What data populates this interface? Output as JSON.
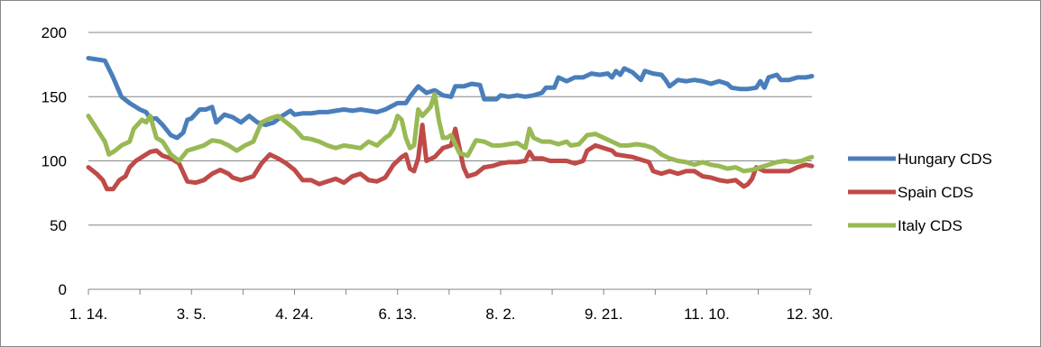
{
  "chart_data": {
    "type": "line",
    "title": "",
    "xlabel": "",
    "ylabel": "",
    "ylim": [
      0,
      200
    ],
    "yticks": [
      0,
      50,
      100,
      150,
      200
    ],
    "xtick_labels": [
      "1. 14.",
      "3. 5.",
      "4. 24.",
      "6. 13.",
      "8. 2.",
      "9. 21.",
      "11. 10.",
      "12. 30."
    ],
    "grid": "horizontal",
    "legend_position": "right",
    "x_count": 351,
    "series": [
      {
        "name": "Hungary CDS",
        "color": "#4a7ebb",
        "points": [
          [
            0,
            180
          ],
          [
            8,
            178
          ],
          [
            12,
            165
          ],
          [
            16,
            150
          ],
          [
            20,
            145
          ],
          [
            25,
            140
          ],
          [
            28,
            138
          ],
          [
            30,
            133
          ],
          [
            33,
            133
          ],
          [
            36,
            128
          ],
          [
            40,
            120
          ],
          [
            43,
            118
          ],
          [
            46,
            122
          ],
          [
            48,
            132
          ],
          [
            50,
            133
          ],
          [
            54,
            140
          ],
          [
            57,
            140
          ],
          [
            60,
            142
          ],
          [
            62,
            130
          ],
          [
            64,
            133
          ],
          [
            66,
            136
          ],
          [
            70,
            134
          ],
          [
            74,
            130
          ],
          [
            78,
            135
          ],
          [
            82,
            130
          ],
          [
            86,
            128
          ],
          [
            90,
            130
          ],
          [
            94,
            135
          ],
          [
            98,
            139
          ],
          [
            100,
            136
          ],
          [
            104,
            137
          ],
          [
            108,
            137
          ],
          [
            112,
            138
          ],
          [
            116,
            138
          ],
          [
            120,
            139
          ],
          [
            124,
            140
          ],
          [
            128,
            139
          ],
          [
            132,
            140
          ],
          [
            136,
            139
          ],
          [
            140,
            138
          ],
          [
            144,
            140
          ],
          [
            150,
            145
          ],
          [
            154,
            145
          ],
          [
            156,
            150
          ],
          [
            160,
            158
          ],
          [
            164,
            153
          ],
          [
            168,
            155
          ],
          [
            172,
            151
          ],
          [
            176,
            150
          ],
          [
            178,
            158
          ],
          [
            182,
            158
          ],
          [
            186,
            160
          ],
          [
            190,
            159
          ],
          [
            192,
            148
          ],
          [
            196,
            148
          ],
          [
            198,
            148
          ],
          [
            200,
            151
          ],
          [
            204,
            150
          ],
          [
            208,
            151
          ],
          [
            212,
            150
          ],
          [
            216,
            151
          ],
          [
            220,
            153
          ],
          [
            222,
            157
          ],
          [
            226,
            157
          ],
          [
            228,
            165
          ],
          [
            232,
            162
          ],
          [
            236,
            165
          ],
          [
            240,
            165
          ],
          [
            244,
            168
          ],
          [
            248,
            167
          ],
          [
            252,
            168
          ],
          [
            254,
            165
          ],
          [
            256,
            170
          ],
          [
            258,
            167
          ],
          [
            260,
            172
          ],
          [
            264,
            169
          ],
          [
            268,
            163
          ],
          [
            270,
            170
          ],
          [
            274,
            168
          ],
          [
            278,
            167
          ],
          [
            280,
            163
          ],
          [
            282,
            158
          ],
          [
            286,
            163
          ],
          [
            290,
            162
          ],
          [
            294,
            163
          ],
          [
            298,
            162
          ],
          [
            302,
            160
          ],
          [
            306,
            162
          ],
          [
            310,
            160
          ],
          [
            312,
            157
          ],
          [
            316,
            156
          ],
          [
            320,
            156
          ],
          [
            324,
            157
          ],
          [
            326,
            162
          ],
          [
            328,
            157
          ],
          [
            330,
            165
          ],
          [
            334,
            167
          ],
          [
            336,
            163
          ],
          [
            340,
            163
          ],
          [
            344,
            165
          ],
          [
            348,
            165
          ],
          [
            351,
            166
          ]
        ]
      },
      {
        "name": "Spain CDS",
        "color": "#be4b48",
        "points": [
          [
            0,
            95
          ],
          [
            4,
            90
          ],
          [
            7,
            85
          ],
          [
            9,
            78
          ],
          [
            12,
            78
          ],
          [
            15,
            85
          ],
          [
            18,
            88
          ],
          [
            20,
            95
          ],
          [
            23,
            100
          ],
          [
            26,
            103
          ],
          [
            30,
            107
          ],
          [
            33,
            108
          ],
          [
            36,
            104
          ],
          [
            40,
            102
          ],
          [
            44,
            98
          ],
          [
            48,
            84
          ],
          [
            52,
            83
          ],
          [
            56,
            85
          ],
          [
            60,
            90
          ],
          [
            64,
            93
          ],
          [
            68,
            90
          ],
          [
            70,
            87
          ],
          [
            74,
            85
          ],
          [
            80,
            88
          ],
          [
            84,
            98
          ],
          [
            88,
            105
          ],
          [
            92,
            102
          ],
          [
            96,
            98
          ],
          [
            100,
            93
          ],
          [
            104,
            85
          ],
          [
            108,
            85
          ],
          [
            112,
            82
          ],
          [
            116,
            84
          ],
          [
            120,
            86
          ],
          [
            124,
            83
          ],
          [
            128,
            88
          ],
          [
            132,
            90
          ],
          [
            136,
            85
          ],
          [
            140,
            84
          ],
          [
            144,
            87
          ],
          [
            148,
            97
          ],
          [
            152,
            103
          ],
          [
            154,
            105
          ],
          [
            156,
            94
          ],
          [
            158,
            92
          ],
          [
            160,
            102
          ],
          [
            162,
            128
          ],
          [
            164,
            100
          ],
          [
            168,
            103
          ],
          [
            172,
            110
          ],
          [
            176,
            112
          ],
          [
            178,
            125
          ],
          [
            182,
            95
          ],
          [
            184,
            88
          ],
          [
            188,
            90
          ],
          [
            192,
            95
          ],
          [
            196,
            96
          ],
          [
            200,
            98
          ],
          [
            204,
            99
          ],
          [
            208,
            99
          ],
          [
            212,
            100
          ],
          [
            214,
            107
          ],
          [
            216,
            102
          ],
          [
            220,
            102
          ],
          [
            224,
            100
          ],
          [
            228,
            100
          ],
          [
            232,
            100
          ],
          [
            236,
            98
          ],
          [
            240,
            100
          ],
          [
            242,
            108
          ],
          [
            246,
            112
          ],
          [
            250,
            110
          ],
          [
            254,
            108
          ],
          [
            256,
            105
          ],
          [
            260,
            104
          ],
          [
            264,
            103
          ],
          [
            268,
            101
          ],
          [
            272,
            99
          ],
          [
            274,
            92
          ],
          [
            278,
            90
          ],
          [
            282,
            92
          ],
          [
            286,
            90
          ],
          [
            290,
            92
          ],
          [
            294,
            92
          ],
          [
            298,
            88
          ],
          [
            302,
            87
          ],
          [
            306,
            85
          ],
          [
            310,
            84
          ],
          [
            314,
            85
          ],
          [
            318,
            80
          ],
          [
            320,
            82
          ],
          [
            322,
            86
          ],
          [
            324,
            95
          ],
          [
            328,
            92
          ],
          [
            332,
            92
          ],
          [
            336,
            92
          ],
          [
            340,
            92
          ],
          [
            344,
            95
          ],
          [
            348,
            97
          ],
          [
            351,
            96
          ]
        ]
      },
      {
        "name": "Italy CDS",
        "color": "#98b954",
        "points": [
          [
            0,
            135
          ],
          [
            4,
            125
          ],
          [
            8,
            115
          ],
          [
            10,
            105
          ],
          [
            13,
            108
          ],
          [
            16,
            112
          ],
          [
            20,
            115
          ],
          [
            22,
            125
          ],
          [
            26,
            132
          ],
          [
            28,
            130
          ],
          [
            30,
            135
          ],
          [
            33,
            118
          ],
          [
            36,
            115
          ],
          [
            40,
            105
          ],
          [
            44,
            100
          ],
          [
            48,
            108
          ],
          [
            52,
            110
          ],
          [
            56,
            112
          ],
          [
            60,
            116
          ],
          [
            64,
            115
          ],
          [
            68,
            112
          ],
          [
            72,
            108
          ],
          [
            76,
            112
          ],
          [
            80,
            115
          ],
          [
            84,
            130
          ],
          [
            88,
            133
          ],
          [
            92,
            135
          ],
          [
            96,
            130
          ],
          [
            100,
            125
          ],
          [
            104,
            118
          ],
          [
            108,
            117
          ],
          [
            112,
            115
          ],
          [
            116,
            112
          ],
          [
            120,
            110
          ],
          [
            124,
            112
          ],
          [
            128,
            111
          ],
          [
            132,
            110
          ],
          [
            136,
            115
          ],
          [
            140,
            112
          ],
          [
            144,
            118
          ],
          [
            146,
            120
          ],
          [
            148,
            125
          ],
          [
            150,
            135
          ],
          [
            152,
            132
          ],
          [
            154,
            118
          ],
          [
            156,
            110
          ],
          [
            158,
            112
          ],
          [
            160,
            140
          ],
          [
            162,
            135
          ],
          [
            166,
            142
          ],
          [
            168,
            152
          ],
          [
            170,
            132
          ],
          [
            172,
            118
          ],
          [
            174,
            118
          ],
          [
            176,
            120
          ],
          [
            180,
            106
          ],
          [
            184,
            104
          ],
          [
            188,
            116
          ],
          [
            192,
            115
          ],
          [
            196,
            112
          ],
          [
            200,
            112
          ],
          [
            204,
            113
          ],
          [
            208,
            114
          ],
          [
            212,
            110
          ],
          [
            214,
            125
          ],
          [
            216,
            118
          ],
          [
            220,
            115
          ],
          [
            224,
            115
          ],
          [
            228,
            113
          ],
          [
            232,
            115
          ],
          [
            234,
            112
          ],
          [
            238,
            113
          ],
          [
            242,
            120
          ],
          [
            246,
            121
          ],
          [
            250,
            118
          ],
          [
            254,
            115
          ],
          [
            258,
            112
          ],
          [
            262,
            112
          ],
          [
            266,
            113
          ],
          [
            270,
            112
          ],
          [
            274,
            110
          ],
          [
            278,
            105
          ],
          [
            282,
            102
          ],
          [
            286,
            100
          ],
          [
            290,
            99
          ],
          [
            294,
            97
          ],
          [
            298,
            99
          ],
          [
            302,
            97
          ],
          [
            306,
            96
          ],
          [
            310,
            94
          ],
          [
            314,
            95
          ],
          [
            318,
            92
          ],
          [
            322,
            93
          ],
          [
            326,
            95
          ],
          [
            330,
            97
          ],
          [
            334,
            99
          ],
          [
            338,
            100
          ],
          [
            342,
            99
          ],
          [
            346,
            100
          ],
          [
            349,
            102
          ],
          [
            351,
            103
          ]
        ]
      }
    ]
  }
}
